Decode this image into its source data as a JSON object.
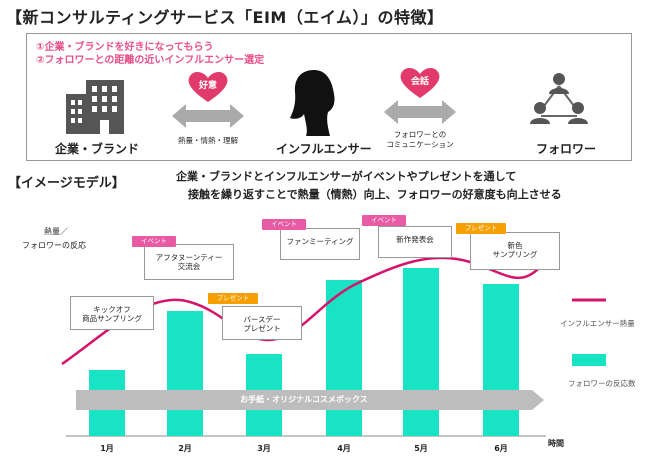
{
  "title": "【新コンサルティングサービス「EIM（エイム）」の特徴】",
  "points": [
    "①企業・ブランドを好きになってもらう",
    "②フォロワーとの距離の近いインフルエンサー選定"
  ],
  "entities": {
    "brand": "企業・ブランド",
    "influencer": "インフルエンサー",
    "follower": "フォロワー"
  },
  "heart_left": "好意",
  "heart_right": "会話",
  "arrow_left_label": "熱量・情熱・理解",
  "arrow_right_label_1": "フォロワーとの",
  "arrow_right_label_2": "コミュニケーション",
  "section2_title": "【イメージモデル】",
  "desc_line1": "企業・ブランドとインフルエンサーがイベントやプレゼントを通して",
  "desc_line2": "接触を繰り返すことで熱量（情熱）向上、フォロワーの好意度も向上させる",
  "y_axis_1": "熱量／",
  "y_axis_2": "フォロワーの反応",
  "x_axis": "時間",
  "months": [
    "1月",
    "2月",
    "3月",
    "4月",
    "5月",
    "6月"
  ],
  "banner": "お手紙・オリジナルコスメボックス",
  "legend": {
    "line": "インフルエンサー熱量",
    "bar": "フォロワーの反応数"
  },
  "callouts": [
    {
      "tag": "",
      "line1": "キックオフ",
      "line2": "商品サンプリング"
    },
    {
      "tag": "イベント",
      "line1": "アフタヌーンティー",
      "line2": "交流会"
    },
    {
      "tag": "プレゼント",
      "line1": "バースデー",
      "line2": "プレゼント"
    },
    {
      "tag": "イベント",
      "line1": "ファンミーティング",
      "line2": ""
    },
    {
      "tag": "イベント",
      "line1": "新作発表会",
      "line2": ""
    },
    {
      "tag": "プレゼント",
      "line1": "新色",
      "line2": "サンプリング"
    }
  ],
  "colors": {
    "accent": "#e8508a",
    "bar": "#19e3c4",
    "line": "#d6136a",
    "heart": "#e23a6a",
    "banner": "#bdbdbd"
  }
}
